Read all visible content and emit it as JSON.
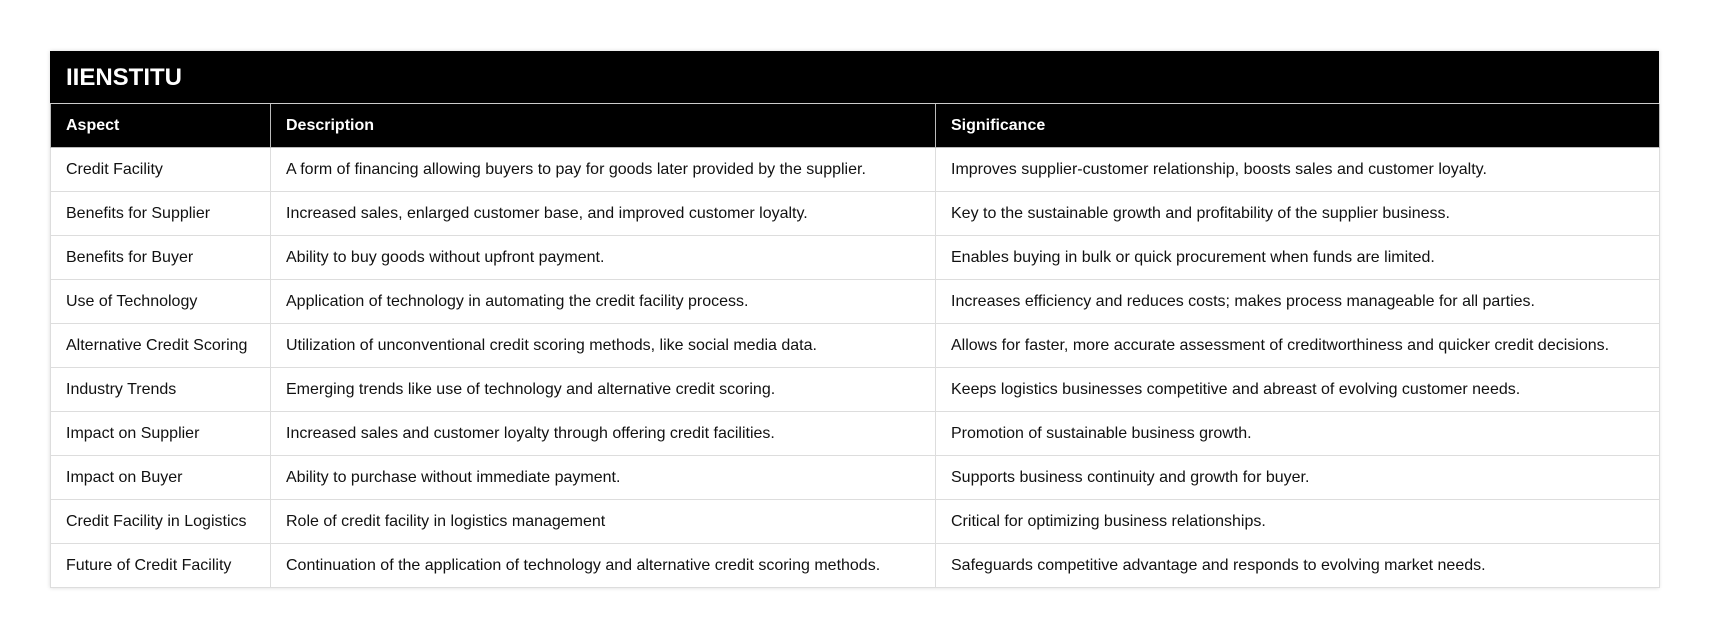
{
  "table": {
    "title": "IIENSTITU",
    "header": [
      "Aspect",
      "Description",
      "Significance"
    ],
    "rows": [
      [
        "Credit Facility",
        "A form of financing allowing buyers to pay for goods later provided by the supplier.",
        "Improves supplier-customer relationship, boosts sales and customer loyalty."
      ],
      [
        "Benefits for Supplier",
        "Increased sales, enlarged customer base, and improved customer loyalty.",
        "Key to the sustainable growth and profitability of the supplier business."
      ],
      [
        "Benefits for Buyer",
        "Ability to buy goods without upfront payment.",
        "Enables buying in bulk or quick procurement when funds are limited."
      ],
      [
        "Use of Technology",
        "Application of technology in automating the credit facility process.",
        "Increases efficiency and reduces costs; makes process manageable for all parties."
      ],
      [
        "Alternative Credit Scoring",
        "Utilization of unconventional credit scoring methods, like social media data.",
        "Allows for faster, more accurate assessment of creditworthiness and quicker credit decisions."
      ],
      [
        "Industry Trends",
        "Emerging trends like use of technology and alternative credit scoring.",
        "Keeps logistics businesses competitive and abreast of evolving customer needs."
      ],
      [
        "Impact on Supplier",
        "Increased sales and customer loyalty through offering credit facilities.",
        "Promotion of sustainable business growth."
      ],
      [
        "Impact on Buyer",
        "Ability to purchase without immediate payment.",
        "Supports business continuity and growth for buyer."
      ],
      [
        "Credit Facility in Logistics",
        "Role of credit facility in logistics management",
        "Critical for optimizing business relationships."
      ],
      [
        "Future of Credit Facility",
        "Continuation of the application of technology and alternative credit scoring methods.",
        "Safeguards competitive advantage and responds to evolving market needs."
      ]
    ]
  }
}
